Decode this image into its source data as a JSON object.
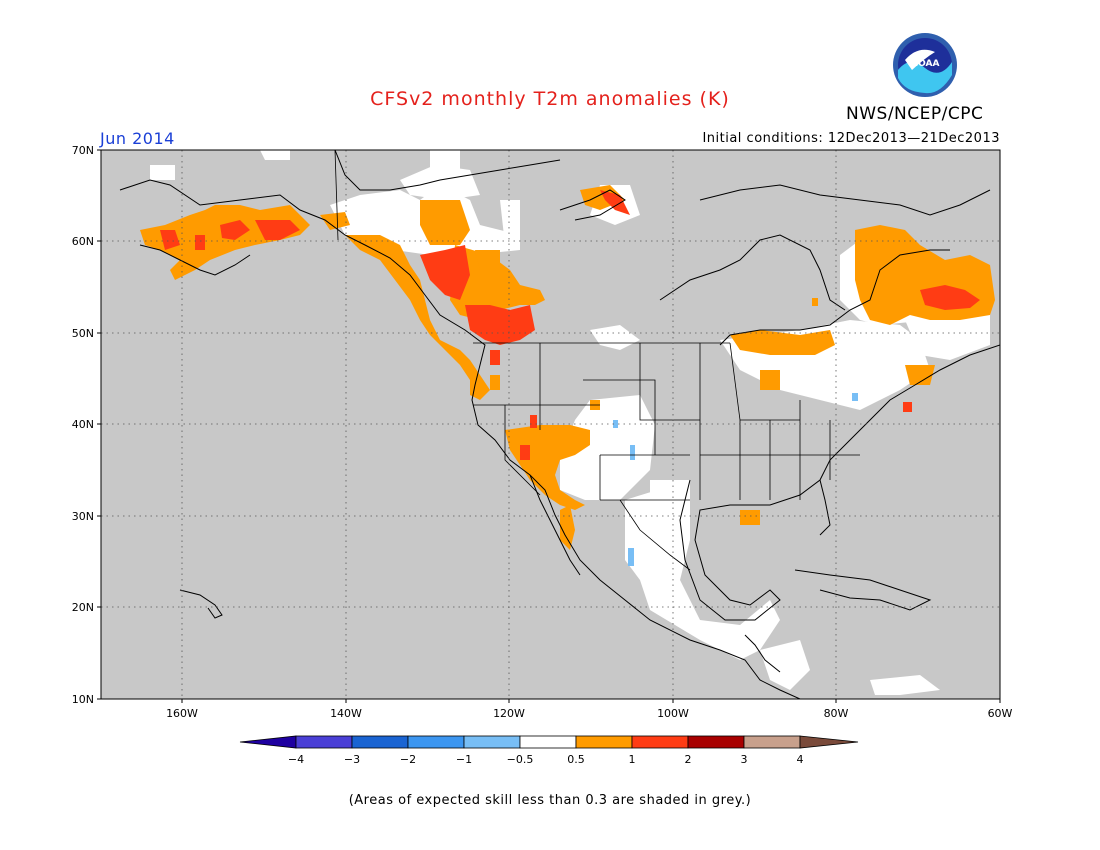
{
  "title": "CFSv2 monthly T2m anomalies (K)",
  "agency": "NWS/NCEP/CPC",
  "logo_text": "NOAA",
  "valid_month": "Jun 2014",
  "initial_conditions": "Initial conditions: 12Dec2013—21Dec2013",
  "caption": "(Areas of expected skill less than 0.3 are shaded in grey.)",
  "map": {
    "lat_labels": [
      "70N",
      "60N",
      "50N",
      "40N",
      "30N",
      "20N",
      "10N"
    ],
    "lon_labels": [
      "160W",
      "140W",
      "120W",
      "100W",
      "80W",
      "60W"
    ],
    "colors": {
      "ocean_low_skill": "#c8c8c8",
      "land_neutral": "#ffffff",
      "warm_0_5_to_1": "#ff9b00",
      "warm_1_to_2": "#ff3c14",
      "warm_2_to_3": "#a80000",
      "cool_minus1_to_minus0_5": "#6fb4f0"
    }
  },
  "colorbar": {
    "labels": [
      "−4",
      "−3",
      "−2",
      "−1",
      "−0.5",
      "0.5",
      "1",
      "2",
      "3",
      "4"
    ],
    "colors": [
      "#1e00a0",
      "#4a3fd6",
      "#1a64d2",
      "#3c96f0",
      "#78bef5",
      "#ffffff",
      "#ff9b00",
      "#ff3c14",
      "#a80000",
      "#c8a08c",
      "#7a4a3a"
    ]
  }
}
